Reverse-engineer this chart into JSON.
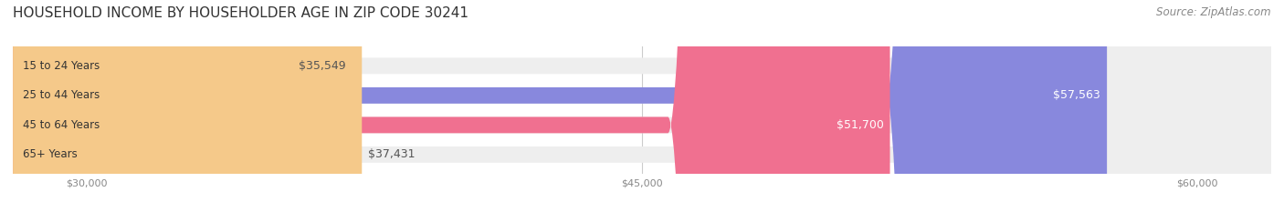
{
  "title": "HOUSEHOLD INCOME BY HOUSEHOLDER AGE IN ZIP CODE 30241",
  "source": "Source: ZipAtlas.com",
  "categories": [
    "15 to 24 Years",
    "25 to 44 Years",
    "45 to 64 Years",
    "65+ Years"
  ],
  "values": [
    35549,
    57563,
    51700,
    37431
  ],
  "labels": [
    "$35,549",
    "$57,563",
    "$51,700",
    "$37,431"
  ],
  "bar_colors": [
    "#5ecfcf",
    "#8888dd",
    "#f07090",
    "#f5c98a"
  ],
  "xmin": 28000,
  "xmax": 62000,
  "xticks": [
    30000,
    45000,
    60000
  ],
  "xtick_labels": [
    "$30,000",
    "$45,000",
    "$60,000"
  ],
  "figsize": [
    14.06,
    2.33
  ],
  "dpi": 100,
  "label_inside_color": "#ffffff",
  "label_outside_color": "#555555",
  "title_fontsize": 11,
  "source_fontsize": 8.5,
  "bar_label_fontsize": 9,
  "category_fontsize": 8.5,
  "tick_fontsize": 8
}
